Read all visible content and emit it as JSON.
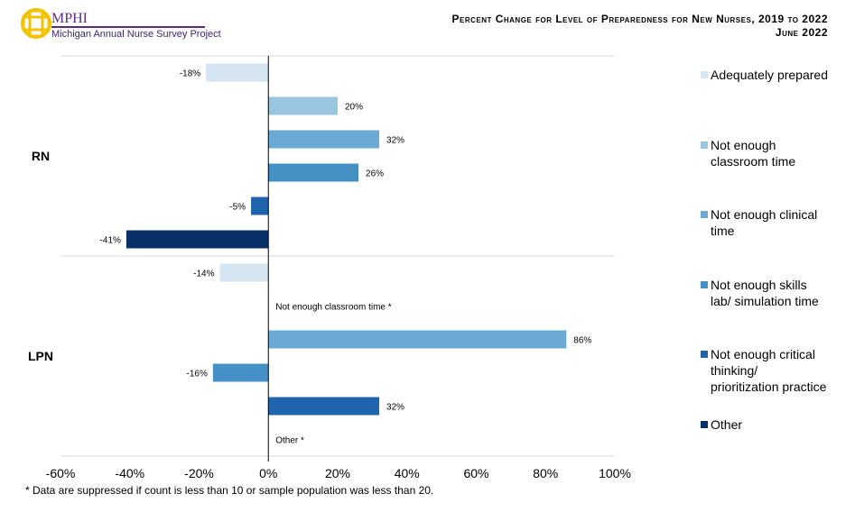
{
  "header": {
    "logo_text": "MPHI",
    "logo_subtitle": "Michigan Annual Nurse Survey Project",
    "title": "Percent Change for Level of Preparedness for New Nurses, 2019 to 2022",
    "subtitle": "June 2022"
  },
  "footnote": "* Data are suppressed if count is less than 10 or sample population was less than 20.",
  "chart_data": {
    "type": "bar",
    "orientation": "horizontal",
    "title": "Percent Change for Level of Preparedness for New Nurses, 2019 to 2022",
    "categories": [
      "RN",
      "LPN"
    ],
    "xlim": [
      -60,
      100
    ],
    "xticks": [
      "-60%",
      "-40%",
      "-20%",
      "0%",
      "20%",
      "40%",
      "60%",
      "80%",
      "100%"
    ],
    "xtick_values": [
      -60,
      -40,
      -20,
      0,
      20,
      40,
      60,
      80,
      100
    ],
    "legend_position": "right",
    "series": [
      {
        "name": "Adequately prepared",
        "color": "#d5e5f2",
        "values": [
          -18,
          -14
        ],
        "labels": [
          "-18%",
          "-14%"
        ]
      },
      {
        "name": "Not enough classroom time",
        "color": "#98c6df",
        "values": [
          20,
          null
        ],
        "labels": [
          "20%",
          "Not enough classroom time *"
        ]
      },
      {
        "name": "Not enough clinical time",
        "color": "#6aaad4",
        "values": [
          32,
          86
        ],
        "labels": [
          "32%",
          "86%"
        ]
      },
      {
        "name": "Not enough skills lab/ simulation time",
        "color": "#4591c5",
        "values": [
          26,
          -16
        ],
        "labels": [
          "26%",
          "-16%"
        ]
      },
      {
        "name": "Not enough critical thinking/ prioritization practice",
        "color": "#2064ad",
        "values": [
          -5,
          32
        ],
        "labels": [
          "-5%",
          "32%"
        ]
      },
      {
        "name": "Other",
        "color": "#08316a",
        "values": [
          -41,
          null
        ],
        "labels": [
          "-41%",
          "Other *"
        ]
      }
    ]
  }
}
